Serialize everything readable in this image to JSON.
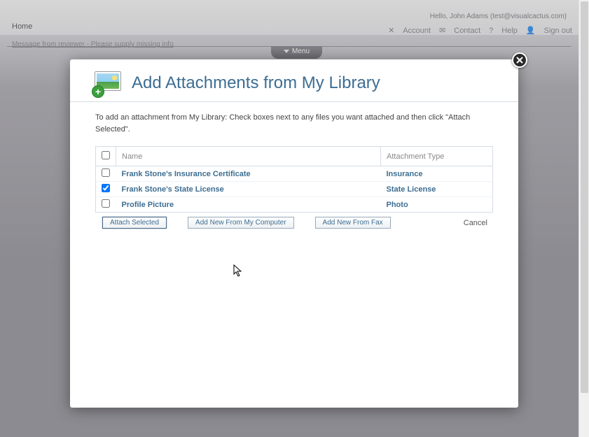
{
  "header": {
    "greeting": "Hello, John Adams (test@visualcactus.com)",
    "home": "Home",
    "nav": {
      "account": "Account",
      "contact": "Contact",
      "help": "Help",
      "signout": "Sign out"
    },
    "message_line": "Message from reviewer - Please supply missing info",
    "menu": "Menu"
  },
  "modal": {
    "title": "Add Attachments from My Library",
    "instructions": "To add an attachment from My Library: Check boxes next to any files you want attached and then click \"Attach Selected\".",
    "columns": {
      "name": "Name",
      "type": "Attachment Type"
    },
    "rows": [
      {
        "checked": false,
        "name": "Frank Stone's Insurance Certificate",
        "type": "Insurance"
      },
      {
        "checked": true,
        "name": "Frank Stone's State License",
        "type": "State License"
      },
      {
        "checked": false,
        "name": "Profile Picture",
        "type": "Photo"
      }
    ],
    "buttons": {
      "attach": "Attach Selected",
      "add_computer": "Add New From My Computer",
      "add_fax": "Add New From Fax",
      "cancel": "Cancel"
    }
  },
  "colors": {
    "link": "#3c6d92",
    "border": "#d6dde3"
  }
}
